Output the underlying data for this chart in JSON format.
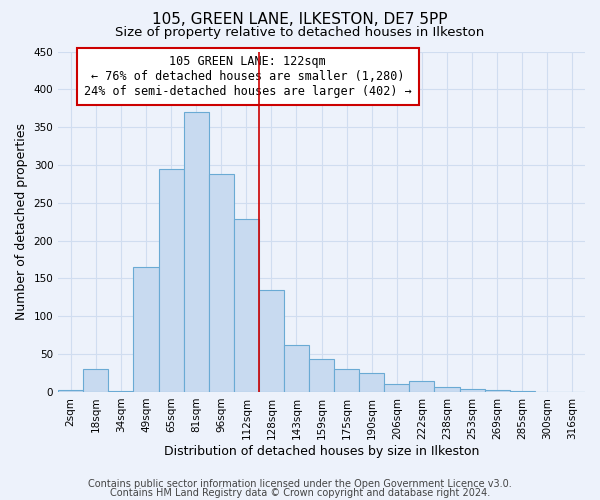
{
  "title": "105, GREEN LANE, ILKESTON, DE7 5PP",
  "subtitle": "Size of property relative to detached houses in Ilkeston",
  "xlabel": "Distribution of detached houses by size in Ilkeston",
  "ylabel": "Number of detached properties",
  "bin_labels": [
    "2sqm",
    "18sqm",
    "34sqm",
    "49sqm",
    "65sqm",
    "81sqm",
    "96sqm",
    "112sqm",
    "128sqm",
    "143sqm",
    "159sqm",
    "175sqm",
    "190sqm",
    "206sqm",
    "222sqm",
    "238sqm",
    "253sqm",
    "269sqm",
    "285sqm",
    "300sqm",
    "316sqm"
  ],
  "bar_heights": [
    2,
    30,
    1,
    165,
    295,
    370,
    288,
    228,
    135,
    62,
    43,
    30,
    25,
    11,
    14,
    6,
    4,
    2,
    1,
    0,
    0
  ],
  "bar_color": "#c8daf0",
  "bar_edge_color": "#6aaad4",
  "vline_x": 7,
  "vline_color": "#cc0000",
  "annotation_box_text": "105 GREEN LANE: 122sqm\n← 76% of detached houses are smaller (1,280)\n24% of semi-detached houses are larger (402) →",
  "annotation_box_edgecolor": "#cc0000",
  "annotation_box_facecolor": "#ffffff",
  "ylim": [
    0,
    450
  ],
  "yticks": [
    0,
    50,
    100,
    150,
    200,
    250,
    300,
    350,
    400,
    450
  ],
  "footer_line1": "Contains HM Land Registry data © Crown copyright and database right 2024.",
  "footer_line2": "Contains public sector information licensed under the Open Government Licence v3.0.",
  "background_color": "#edf2fb",
  "grid_color": "#d0ddf0",
  "title_fontsize": 11,
  "subtitle_fontsize": 9.5,
  "axis_label_fontsize": 9,
  "tick_fontsize": 7.5,
  "annotation_fontsize": 8.5,
  "footer_fontsize": 7
}
